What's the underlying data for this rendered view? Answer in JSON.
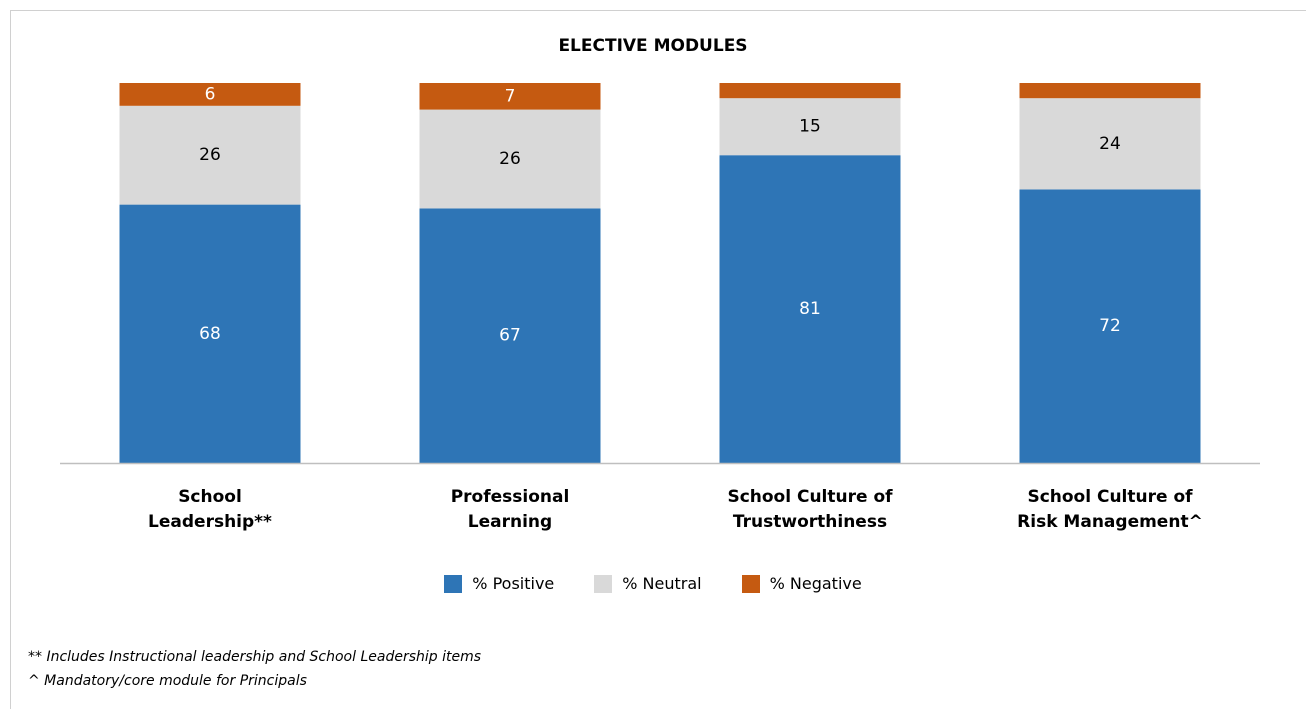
{
  "chart_data": {
    "type": "bar",
    "stacked": true,
    "title": "ELECTIVE MODULES",
    "categories": [
      [
        "School",
        "Leadership**"
      ],
      [
        "Professional",
        "Learning"
      ],
      [
        "School Culture of",
        "Trustworthiness"
      ],
      [
        "School Culture of",
        "Risk Management^"
      ]
    ],
    "series": [
      {
        "name": "% Positive",
        "color": "#2e75b6",
        "values": [
          68,
          67,
          81,
          72
        ],
        "labels": [
          "68",
          "67",
          "81",
          "72"
        ],
        "label_color": "#ffffff"
      },
      {
        "name": "% Neutral",
        "color": "#d9d9d9",
        "values": [
          26,
          26,
          15,
          24
        ],
        "labels": [
          "26",
          "26",
          "15",
          "24"
        ],
        "label_color": "#000000"
      },
      {
        "name": "% Negative",
        "color": "#c55a11",
        "values": [
          6,
          7,
          4,
          4
        ],
        "labels": [
          "6",
          "7",
          "",
          ""
        ],
        "label_color": "#ffffff"
      }
    ],
    "ylim": [
      0,
      100
    ],
    "grid": false,
    "legend_position": "bottom"
  },
  "footnotes": [
    "** Includes Instructional leadership and School Leadership items",
    "^ Mandatory/core module for Principals"
  ]
}
